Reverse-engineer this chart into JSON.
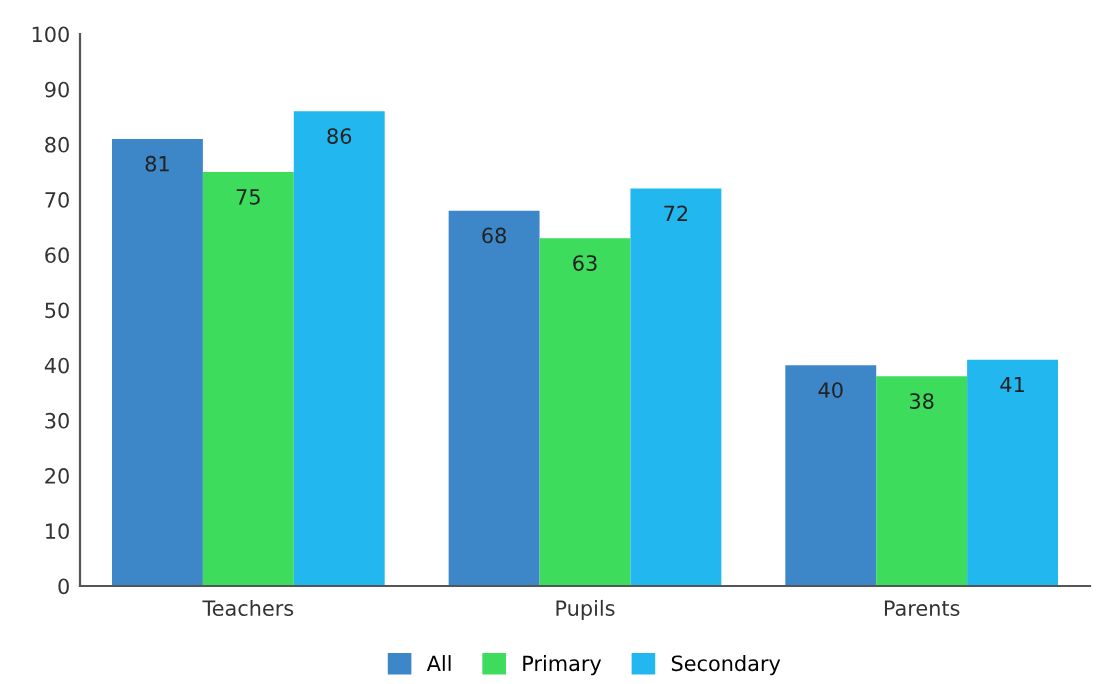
{
  "chart_data": {
    "type": "bar",
    "categories": [
      "Teachers",
      "Pupils",
      "Parents"
    ],
    "series": [
      {
        "name": "All",
        "color": "#3d87c8",
        "values": [
          81,
          68,
          40
        ]
      },
      {
        "name": "Primary",
        "color": "#3ddc5c",
        "values": [
          75,
          63,
          38
        ]
      },
      {
        "name": "Secondary",
        "color": "#22b7ee",
        "values": [
          86,
          72,
          41
        ]
      }
    ],
    "ylim": [
      0,
      100
    ],
    "yticks": [
      0,
      10,
      20,
      30,
      40,
      50,
      60,
      70,
      80,
      90,
      100
    ],
    "data_labels": true,
    "legend": "bottom",
    "grid": false
  }
}
